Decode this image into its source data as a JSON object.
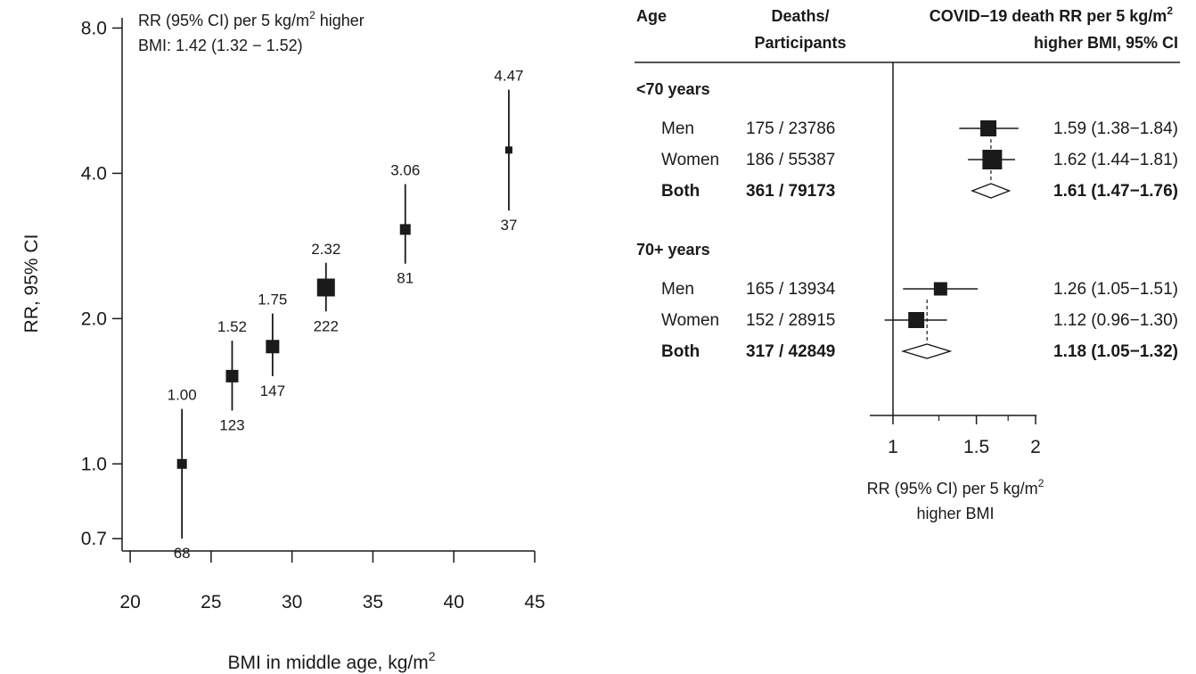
{
  "chart_data": [
    {
      "type": "scatter",
      "scale": "log-y",
      "ylabel": "RR, 95% CI",
      "xlabel_main": "BMI in middle age, kg/m",
      "xlabel_sup": "2",
      "xlim": [
        19.5,
        45
      ],
      "ylim": [
        0.66,
        8.4
      ],
      "x_ticks": [
        20,
        25,
        30,
        35,
        40,
        45
      ],
      "y_ticks": [
        {
          "value": 0.7,
          "label": "0.7"
        },
        {
          "value": 1.0,
          "label": "1.0"
        },
        {
          "value": 2.0,
          "label": "2.0"
        },
        {
          "value": 4.0,
          "label": "4.0"
        },
        {
          "value": 8.0,
          "label": "8.0"
        }
      ],
      "annotation": {
        "line1_main": "RR (95% CI) per 5 kg/m",
        "line1_sup": "2",
        "line1_end": " higher",
        "line2": "BMI: 1.42 (1.32 − 1.52)"
      },
      "points": [
        {
          "x": 23.2,
          "rr": 1.0,
          "lo": 0.7,
          "hi": 1.3,
          "size": 11,
          "label": "1.00",
          "deaths": "68"
        },
        {
          "x": 26.3,
          "rr": 1.52,
          "lo": 1.29,
          "hi": 1.8,
          "size": 14,
          "label": "1.52",
          "deaths": "123"
        },
        {
          "x": 28.8,
          "rr": 1.75,
          "lo": 1.52,
          "hi": 2.05,
          "size": 15,
          "label": "1.75",
          "deaths": "147"
        },
        {
          "x": 32.1,
          "rr": 2.32,
          "lo": 2.07,
          "hi": 2.61,
          "size": 20,
          "label": "2.32",
          "deaths": "222"
        },
        {
          "x": 37.0,
          "rr": 3.06,
          "lo": 2.6,
          "hi": 3.8,
          "size": 12,
          "label": "3.06",
          "deaths": "81"
        },
        {
          "x": 43.4,
          "rr": 4.47,
          "lo": 3.35,
          "hi": 5.96,
          "size": 8,
          "label": "4.47",
          "deaths": "37"
        }
      ]
    },
    {
      "type": "forest",
      "scale": "log-x",
      "xlim": [
        1,
        2
      ],
      "x_ticks": [
        {
          "value": 1,
          "label": "1"
        },
        {
          "value": 1.5,
          "label": "1.5"
        },
        {
          "value": 2,
          "label": "2"
        }
      ],
      "x_minor": [
        1.25,
        1.75
      ],
      "headers": {
        "age": "Age",
        "deaths_1": "Deaths/",
        "deaths_2": "Participants",
        "rr_1_main": "COVID−19 death RR per 5 kg/m",
        "rr_1_sup": "2",
        "rr_2": "higher BMI, 95% CI"
      },
      "xlabel_1_main": "RR (95% CI) per 5 kg/m",
      "xlabel_1_sup": "2",
      "xlabel_2": "higher BMI",
      "groups": [
        {
          "title": "<70 years",
          "rows": [
            {
              "label": "Men",
              "deaths": "175 / 23786",
              "rr": 1.59,
              "lo": 1.38,
              "hi": 1.84,
              "text": "1.59 (1.38−1.84)",
              "size": 18,
              "kind": "square"
            },
            {
              "label": "Women",
              "deaths": "186 / 55387",
              "rr": 1.62,
              "lo": 1.44,
              "hi": 1.81,
              "text": "1.62 (1.44−1.81)",
              "size": 22,
              "kind": "square"
            },
            {
              "label": "Both",
              "deaths": "361 / 79173",
              "rr": 1.61,
              "lo": 1.47,
              "hi": 1.76,
              "text": "1.61 (1.47−1.76)",
              "kind": "diamond"
            }
          ]
        },
        {
          "title": "70+ years",
          "rows": [
            {
              "label": "Men",
              "deaths": "165 / 13934",
              "rr": 1.26,
              "lo": 1.05,
              "hi": 1.51,
              "text": "1.26 (1.05−1.51)",
              "size": 15,
              "kind": "square"
            },
            {
              "label": "Women",
              "deaths": "152 / 28915",
              "rr": 1.12,
              "lo": 0.96,
              "hi": 1.3,
              "text": "1.12 (0.96−1.30)",
              "size": 18,
              "kind": "square"
            },
            {
              "label": "Both",
              "deaths": "317 / 42849",
              "rr": 1.18,
              "lo": 1.05,
              "hi": 1.32,
              "text": "1.18 (1.05−1.32)",
              "kind": "diamond"
            }
          ]
        }
      ]
    }
  ]
}
